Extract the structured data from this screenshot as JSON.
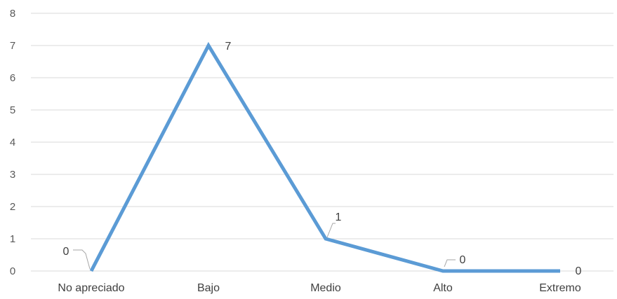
{
  "chart_data": {
    "type": "line",
    "title": "",
    "xlabel": "",
    "ylabel": "",
    "categories": [
      "No apreciado",
      "Bajo",
      "Medio",
      "Alto",
      "Extremo"
    ],
    "series": [
      {
        "values": [
          0,
          7,
          1,
          0,
          0
        ],
        "color": "#5b9bd5"
      }
    ],
    "data_labels": [
      "0",
      "7",
      "1",
      "0",
      "0"
    ],
    "ylim": [
      0,
      8
    ],
    "yticks": [
      "0",
      "1",
      "2",
      "3",
      "4",
      "5",
      "6",
      "7",
      "8"
    ],
    "grid": true,
    "legend": "none"
  }
}
